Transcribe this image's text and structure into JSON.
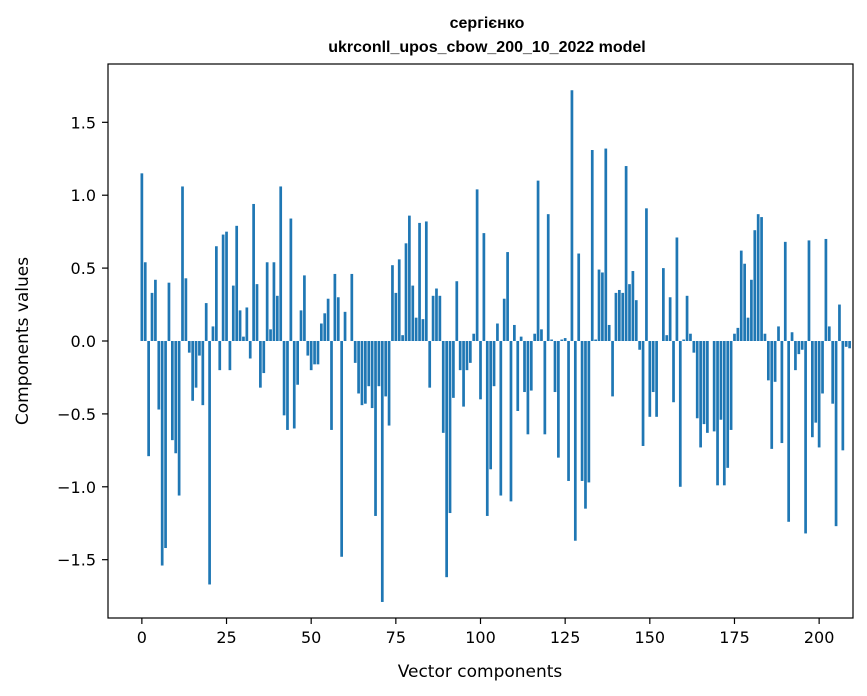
{
  "chart_data": {
    "type": "bar",
    "title_line1": "сергієнко",
    "title_line2": "ukrconll_upos_cbow_200_10_2022 model",
    "xlabel": "Vector components",
    "ylabel": "Components values",
    "xlim": [
      -10,
      210
    ],
    "ylim": [
      -1.9,
      1.9
    ],
    "xticks": [
      0,
      25,
      50,
      75,
      100,
      125,
      150,
      175,
      200
    ],
    "yticks": [
      -1.5,
      -1.0,
      -0.5,
      0.0,
      0.5,
      1.0,
      1.5
    ],
    "ytick_labels": [
      "−1.5",
      "−1.0",
      "−0.5",
      "0.0",
      "0.5",
      "1.0",
      "1.5"
    ],
    "bar_color": "#1f77b4",
    "grid": false,
    "values": [
      1.15,
      0.54,
      -0.79,
      0.33,
      0.42,
      -0.47,
      -1.54,
      -1.42,
      0.4,
      -0.68,
      -0.77,
      -1.06,
      1.06,
      0.43,
      -0.08,
      -0.41,
      -0.32,
      -0.1,
      -0.44,
      0.26,
      -1.67,
      0.1,
      0.65,
      -0.2,
      0.73,
      0.75,
      -0.2,
      0.38,
      0.79,
      0.21,
      0.03,
      0.23,
      -0.12,
      0.94,
      0.39,
      -0.32,
      -0.22,
      0.54,
      0.08,
      0.54,
      0.31,
      1.06,
      -0.51,
      -0.61,
      0.84,
      -0.6,
      -0.3,
      0.21,
      0.45,
      -0.1,
      -0.2,
      -0.16,
      -0.16,
      0.12,
      0.19,
      0.29,
      -0.61,
      0.46,
      0.3,
      -1.48,
      0.2,
      0.0,
      0.46,
      -0.15,
      -0.36,
      -0.44,
      -0.43,
      -0.31,
      -0.46,
      -1.2,
      -0.31,
      -1.79,
      -0.38,
      -0.58,
      0.52,
      0.33,
      0.56,
      0.04,
      0.67,
      0.86,
      0.38,
      0.16,
      0.81,
      0.15,
      0.82,
      -0.32,
      0.31,
      0.36,
      0.31,
      -0.63,
      -1.62,
      -1.18,
      -0.39,
      0.41,
      -0.2,
      -0.45,
      -0.2,
      -0.15,
      0.05,
      1.04,
      -0.4,
      0.74,
      -1.2,
      -0.88,
      -0.31,
      0.12,
      -1.06,
      0.29,
      0.61,
      -1.1,
      0.11,
      -0.48,
      0.03,
      -0.35,
      -0.64,
      -0.34,
      0.05,
      1.1,
      0.08,
      -0.64,
      0.87,
      0.01,
      -0.35,
      -0.8,
      0.01,
      0.02,
      -0.96,
      1.72,
      -1.37,
      0.6,
      -0.96,
      -1.15,
      -0.97,
      1.31,
      0.01,
      0.49,
      0.47,
      1.32,
      0.11,
      -0.38,
      0.33,
      0.35,
      0.33,
      1.2,
      0.39,
      0.48,
      0.28,
      -0.06,
      -0.72,
      0.91,
      -0.52,
      -0.35,
      -0.52,
      0.0,
      0.5,
      0.04,
      0.3,
      -0.42,
      0.71,
      -1.0,
      0.01,
      0.31,
      0.05,
      -0.08,
      -0.53,
      -0.73,
      -0.57,
      -0.63,
      0.0,
      -0.62,
      -0.99,
      -0.54,
      -0.99,
      -0.87,
      -0.61,
      0.05,
      0.09,
      0.62,
      0.53,
      0.16,
      0.42,
      0.76,
      0.87,
      0.85,
      0.05,
      -0.27,
      -0.74,
      -0.28,
      0.1,
      -0.7,
      0.68,
      -1.24,
      0.06,
      -0.2,
      -0.09,
      -0.06,
      -1.32,
      0.69,
      -0.66,
      -0.56,
      -0.73,
      -0.36,
      0.7,
      0.1,
      -0.43,
      -1.27,
      0.25,
      -0.75,
      -0.04,
      -0.05
    ]
  }
}
